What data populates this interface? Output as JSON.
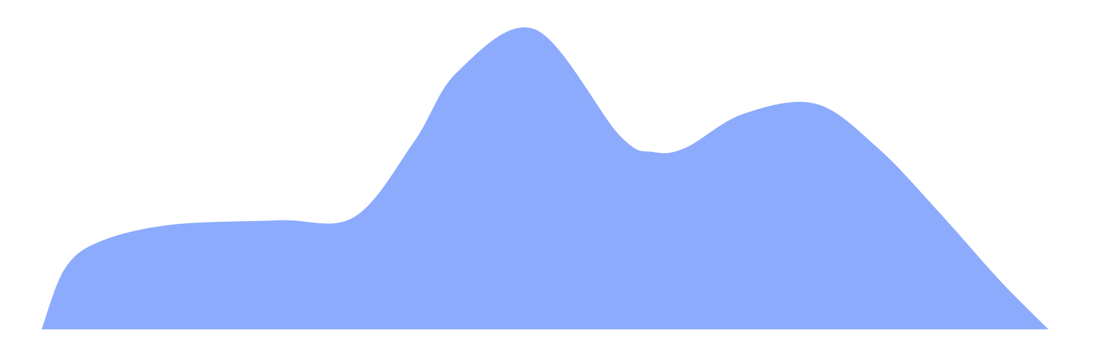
{
  "chart_data": {
    "type": "area",
    "title": "",
    "xlabel": "",
    "ylabel": "",
    "grid": false,
    "legend": "none",
    "axes_visible": false,
    "smooth": true,
    "xlim": [
      0,
      1
    ],
    "ylim": [
      0,
      1
    ],
    "series": [
      {
        "color": "#8dabfd",
        "x": [
          0.0,
          0.023,
          0.058,
          0.128,
          0.235,
          0.31,
          0.37,
          0.413,
          0.49,
          0.574,
          0.608,
          0.64,
          0.696,
          0.768,
          0.83,
          0.893,
          0.952,
          1.0
        ],
        "y": [
          0.0,
          0.2,
          0.29,
          0.345,
          0.36,
          0.37,
          0.62,
          0.85,
          0.99,
          0.64,
          0.585,
          0.6,
          0.71,
          0.745,
          0.6,
          0.38,
          0.16,
          0.0
        ]
      }
    ]
  }
}
